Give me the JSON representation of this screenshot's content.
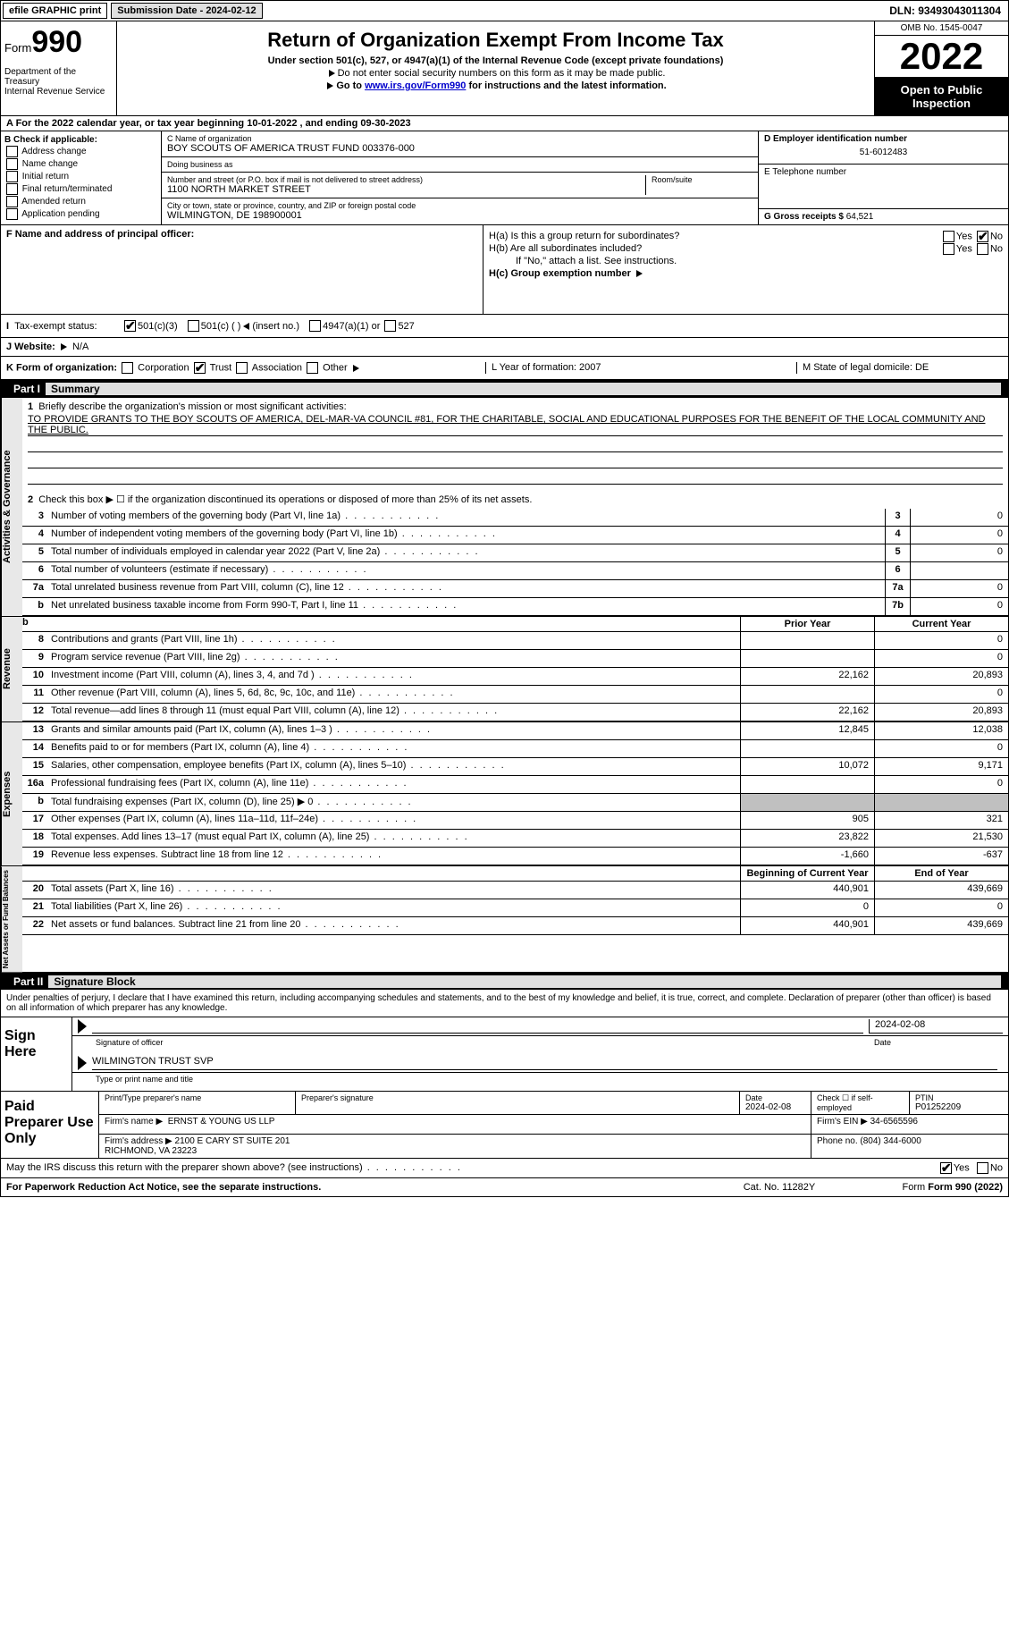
{
  "top": {
    "efile": "efile GRAPHIC print",
    "submission": "Submission Date - 2024-02-12",
    "dln": "DLN: 93493043011304"
  },
  "header": {
    "form_prefix": "Form",
    "form_number": "990",
    "dept": "Department of the Treasury\nInternal Revenue Service",
    "title": "Return of Organization Exempt From Income Tax",
    "sub": "Under section 501(c), 527, or 4947(a)(1) of the Internal Revenue Code (except private foundations)",
    "note1": "Do not enter social security numbers on this form as it may be made public.",
    "note2_prefix": "Go to ",
    "note2_link": "www.irs.gov/Form990",
    "note2_suffix": " for instructions and the latest information.",
    "omb": "OMB No. 1545-0047",
    "year": "2022",
    "open": "Open to Public Inspection"
  },
  "row_a": {
    "prefix": "A For the 2022 calendar year, or tax year beginning ",
    "begin": "10-01-2022",
    "mid": " , and ending ",
    "end": "09-30-2023"
  },
  "b": {
    "label": "B Check if applicable:",
    "opts": [
      "Address change",
      "Name change",
      "Initial return",
      "Final return/terminated",
      "Amended return",
      "Application pending"
    ]
  },
  "c": {
    "name_label": "C Name of organization",
    "name": "BOY SCOUTS OF AMERICA TRUST FUND 003376-000",
    "dba_label": "Doing business as",
    "dba": "",
    "street_label": "Number and street (or P.O. box if mail is not delivered to street address)",
    "room_label": "Room/suite",
    "street": "1100 NORTH MARKET STREET",
    "city_label": "City or town, state or province, country, and ZIP or foreign postal code",
    "city": "WILMINGTON, DE  198900001"
  },
  "d": {
    "ein_label": "D Employer identification number",
    "ein": "51-6012483",
    "phone_label": "E Telephone number",
    "phone": "",
    "receipts_label": "G Gross receipts $",
    "receipts": "64,521"
  },
  "f": {
    "label": "F Name and address of principal officer:",
    "val": ""
  },
  "h": {
    "a": "H(a) Is this a group return for subordinates?",
    "b": "H(b) Are all subordinates included?",
    "b_note": "If \"No,\" attach a list. See instructions.",
    "c": "H(c) Group exemption number",
    "yes": "Yes",
    "no": "No"
  },
  "tax": {
    "label": "Tax-exempt status:",
    "o501c3": "501(c)(3)",
    "o501c": "501(c) (  )",
    "insert": "(insert no.)",
    "o4947": "4947(a)(1) or",
    "o527": "527"
  },
  "j": {
    "label": "J   Website:",
    "val": "N/A"
  },
  "k": {
    "label": "K Form of organization:",
    "corp": "Corporation",
    "trust": "Trust",
    "assoc": "Association",
    "other": "Other",
    "l": "L Year of formation: 2007",
    "m": "M State of legal domicile: DE"
  },
  "part1": {
    "num": "Part I",
    "title": "Summary"
  },
  "summary": {
    "side1": "Activities & Governance",
    "line1_label": "Briefly describe the organization's mission or most significant activities:",
    "line1_text": "TO PROVIDE GRANTS TO THE BOY SCOUTS OF AMERICA, DEL-MAR-VA COUNCIL #81, FOR THE CHARITABLE, SOCIAL AND EDUCATIONAL PURPOSES FOR THE BENEFIT OF THE LOCAL COMMUNITY AND THE PUBLIC.",
    "line2": "Check this box ▶ ☐ if the organization discontinued its operations or disposed of more than 25% of its net assets.",
    "rows_ag": [
      {
        "n": "3",
        "desc": "Number of voting members of the governing body (Part VI, line 1a)",
        "box": "3",
        "val": "0"
      },
      {
        "n": "4",
        "desc": "Number of independent voting members of the governing body (Part VI, line 1b)",
        "box": "4",
        "val": "0"
      },
      {
        "n": "5",
        "desc": "Total number of individuals employed in calendar year 2022 (Part V, line 2a)",
        "box": "5",
        "val": "0"
      },
      {
        "n": "6",
        "desc": "Total number of volunteers (estimate if necessary)",
        "box": "6",
        "val": ""
      },
      {
        "n": "7a",
        "desc": "Total unrelated business revenue from Part VIII, column (C), line 12",
        "box": "7a",
        "val": "0"
      },
      {
        "n": "b",
        "desc": "Net unrelated business taxable income from Form 990-T, Part I, line 11",
        "box": "7b",
        "val": "0"
      }
    ],
    "hdr_prior": "Prior Year",
    "hdr_current": "Current Year",
    "side2": "Revenue",
    "rows_rev": [
      {
        "n": "8",
        "desc": "Contributions and grants (Part VIII, line 1h)",
        "py": "",
        "cy": "0"
      },
      {
        "n": "9",
        "desc": "Program service revenue (Part VIII, line 2g)",
        "py": "",
        "cy": "0"
      },
      {
        "n": "10",
        "desc": "Investment income (Part VIII, column (A), lines 3, 4, and 7d )",
        "py": "22,162",
        "cy": "20,893"
      },
      {
        "n": "11",
        "desc": "Other revenue (Part VIII, column (A), lines 5, 6d, 8c, 9c, 10c, and 11e)",
        "py": "",
        "cy": "0"
      },
      {
        "n": "12",
        "desc": "Total revenue—add lines 8 through 11 (must equal Part VIII, column (A), line 12)",
        "py": "22,162",
        "cy": "20,893"
      }
    ],
    "side3": "Expenses",
    "rows_exp": [
      {
        "n": "13",
        "desc": "Grants and similar amounts paid (Part IX, column (A), lines 1–3 )",
        "py": "12,845",
        "cy": "12,038"
      },
      {
        "n": "14",
        "desc": "Benefits paid to or for members (Part IX, column (A), line 4)",
        "py": "",
        "cy": "0"
      },
      {
        "n": "15",
        "desc": "Salaries, other compensation, employee benefits (Part IX, column (A), lines 5–10)",
        "py": "10,072",
        "cy": "9,171"
      },
      {
        "n": "16a",
        "desc": "Professional fundraising fees (Part IX, column (A), line 11e)",
        "py": "",
        "cy": "0"
      },
      {
        "n": "b",
        "desc": "Total fundraising expenses (Part IX, column (D), line 25) ▶ 0",
        "py": "GRAY",
        "cy": "GRAY"
      },
      {
        "n": "17",
        "desc": "Other expenses (Part IX, column (A), lines 11a–11d, 11f–24e)",
        "py": "905",
        "cy": "321"
      },
      {
        "n": "18",
        "desc": "Total expenses. Add lines 13–17 (must equal Part IX, column (A), line 25)",
        "py": "23,822",
        "cy": "21,530"
      },
      {
        "n": "19",
        "desc": "Revenue less expenses. Subtract line 18 from line 12",
        "py": "-1,660",
        "cy": "-637"
      }
    ],
    "hdr_begin": "Beginning of Current Year",
    "hdr_end": "End of Year",
    "side4": "Net Assets or Fund Balances",
    "rows_na": [
      {
        "n": "20",
        "desc": "Total assets (Part X, line 16)",
        "py": "440,901",
        "cy": "439,669"
      },
      {
        "n": "21",
        "desc": "Total liabilities (Part X, line 26)",
        "py": "0",
        "cy": "0"
      },
      {
        "n": "22",
        "desc": "Net assets or fund balances. Subtract line 21 from line 20",
        "py": "440,901",
        "cy": "439,669"
      }
    ]
  },
  "part2": {
    "num": "Part II",
    "title": "Signature Block"
  },
  "sig": {
    "declare": "Under penalties of perjury, I declare that I have examined this return, including accompanying schedules and statements, and to the best of my knowledge and belief, it is true, correct, and complete. Declaration of preparer (other than officer) is based on all information of which preparer has any knowledge.",
    "sign_here": "Sign Here",
    "sig_officer": "Signature of officer",
    "date": "Date",
    "sig_date": "2024-02-08",
    "name_title": "WILMINGTON TRUST SVP",
    "name_label": "Type or print name and title"
  },
  "paid": {
    "label": "Paid Preparer Use Only",
    "print_label": "Print/Type preparer's name",
    "prep_sig_label": "Preparer's signature",
    "date_label": "Date",
    "date": "2024-02-08",
    "check_label": "Check ☐ if self-employed",
    "ptin_label": "PTIN",
    "ptin": "P01252209",
    "firm_name_label": "Firm's name   ▶",
    "firm_name": "ERNST & YOUNG US LLP",
    "firm_ein_label": "Firm's EIN ▶",
    "firm_ein": "34-6565596",
    "firm_addr_label": "Firm's address ▶",
    "firm_addr": "2100 E CARY ST SUITE 201\nRICHMOND, VA  23223",
    "phone_label": "Phone no.",
    "phone": "(804) 344-6000"
  },
  "bottom": {
    "q": "May the IRS discuss this return with the preparer shown above? (see instructions)",
    "yes": "Yes",
    "no": "No"
  },
  "footer": {
    "pra": "For Paperwork Reduction Act Notice, see the separate instructions.",
    "cat": "Cat. No. 11282Y",
    "form": "Form 990 (2022)"
  }
}
